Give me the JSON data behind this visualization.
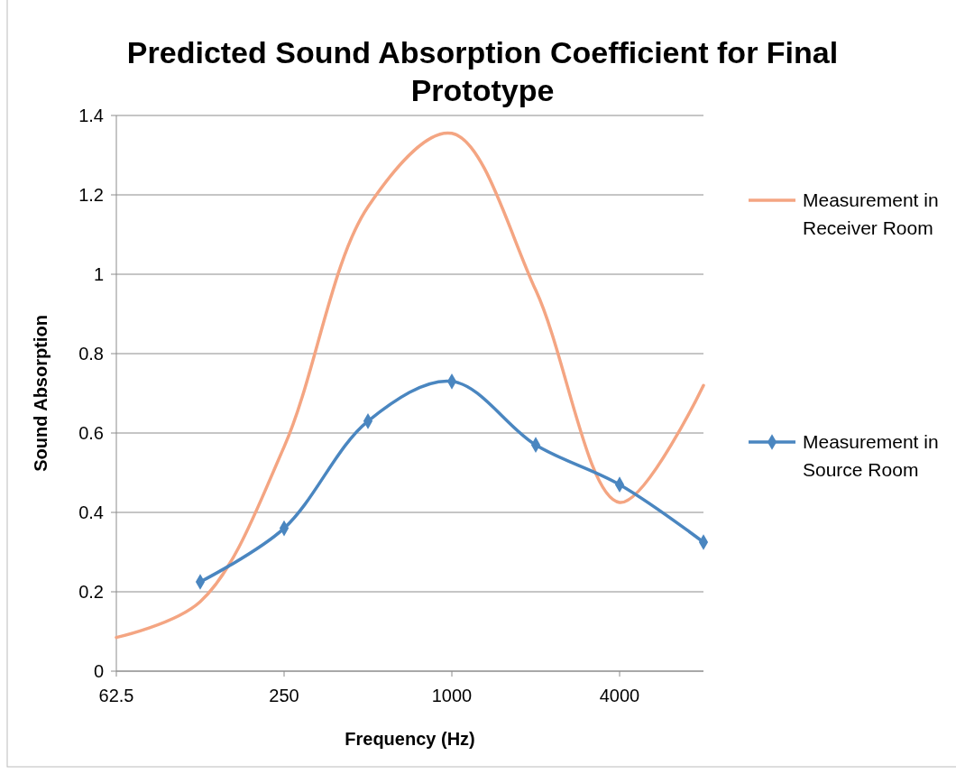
{
  "chart_data": {
    "type": "line",
    "title": "Predicted Sound Absorption Coefficient for Final Prototype",
    "xlabel": "Frequency (Hz)",
    "ylabel": "Sound Absorption",
    "x": [
      62.5,
      125,
      250,
      500,
      1000,
      2000,
      4000,
      8000
    ],
    "series": [
      {
        "name": "Measurement in Receiver Room",
        "color": "#f4a582",
        "marker": "none",
        "values": [
          0.085,
          0.175,
          0.565,
          1.17,
          1.355,
          0.96,
          0.425,
          0.72
        ]
      },
      {
        "name": "Measurement in Source Room",
        "color": "#4a86c0",
        "marker": "diamond",
        "values": [
          null,
          0.225,
          0.36,
          0.63,
          0.73,
          0.57,
          0.47,
          0.325
        ]
      }
    ],
    "log": "x",
    "xlim": [
      62.5,
      8000
    ],
    "xticks": [
      62.5,
      250,
      1000,
      4000
    ],
    "ylim": [
      0,
      1.4
    ],
    "yticks": [
      0,
      0.2,
      0.4,
      0.6,
      0.8,
      1,
      1.2,
      1.4
    ],
    "grid": "y",
    "legend": "right",
    "line_style": "solid"
  }
}
